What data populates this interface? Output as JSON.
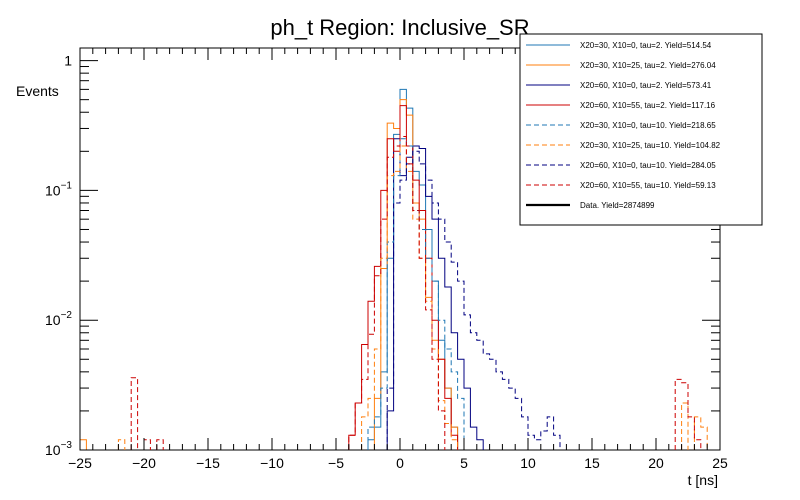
{
  "chart_data": {
    "type": "line",
    "title": "ph_t Region: Inclusive_SR",
    "xlabel": "t [ns]",
    "ylabel": "Events",
    "xlim": [
      -25,
      25
    ],
    "ylim": [
      0.001,
      1.25
    ],
    "yscale": "log",
    "step": true,
    "bin_width": 0.5,
    "legend_position": "top-right",
    "x_ticks": [
      -25,
      -20,
      -15,
      -10,
      -5,
      0,
      5,
      10,
      15,
      20,
      25
    ],
    "x_tick_labels": [
      "−25",
      "−20",
      "−15",
      "−10",
      "−5",
      "0",
      "5",
      "10",
      "15",
      "20",
      "25"
    ],
    "y_ticks": [
      0.001,
      0.01,
      0.1,
      1
    ],
    "y_tick_labels": [
      {
        "base": "10",
        "exp": "−3"
      },
      {
        "base": "10",
        "exp": "−2"
      },
      {
        "base": "10",
        "exp": "−1"
      },
      {
        "base": "1",
        "exp": ""
      }
    ],
    "series": [
      {
        "name": "X20=30, X10=0, tau=2. Yield=514.54",
        "color": "#1f77b4",
        "dash": false,
        "points": [
          [
            -2.5,
            0.0012
          ],
          [
            -2,
            0.0015
          ],
          [
            -1.5,
            0.004
          ],
          [
            -1,
            0.03
          ],
          [
            -0.5,
            0.27
          ],
          [
            0,
            0.6
          ],
          [
            0.5,
            0.43
          ],
          [
            1,
            0.14
          ],
          [
            1.5,
            0.11
          ],
          [
            2,
            0.05
          ],
          [
            2.5,
            0.02
          ],
          [
            3,
            0.007
          ],
          [
            3.5,
            0.003
          ],
          [
            4,
            0.0015
          ]
        ]
      },
      {
        "name": "X20=30, X10=25, tau=2. Yield=276.04",
        "color": "#ff7f0e",
        "dash": false,
        "points": [
          [
            -25,
            0.0012
          ],
          [
            -2,
            0.0025
          ],
          [
            -1.5,
            0.025
          ],
          [
            -1,
            0.33
          ],
          [
            -0.5,
            0.3
          ],
          [
            0,
            0.5
          ],
          [
            0.5,
            0.38
          ],
          [
            1,
            0.08
          ],
          [
            1.5,
            0.06
          ],
          [
            2,
            0.015
          ],
          [
            2.5,
            0.007
          ],
          [
            3,
            0.005
          ],
          [
            3.5,
            0.003
          ],
          [
            4,
            0.0015
          ]
        ]
      },
      {
        "name": "X20=60, X10=0, tau=2. Yield=573.41",
        "color": "#000080",
        "dash": false,
        "points": [
          [
            -1,
            0.002
          ],
          [
            -0.5,
            0.25
          ],
          [
            0,
            0.13
          ],
          [
            0.5,
            0.18
          ],
          [
            1,
            0.22
          ],
          [
            1.5,
            0.21
          ],
          [
            2,
            0.09
          ],
          [
            2.5,
            0.06
          ],
          [
            3,
            0.03
          ],
          [
            3.5,
            0.018
          ],
          [
            4,
            0.008
          ],
          [
            4.5,
            0.005
          ],
          [
            5,
            0.003
          ],
          [
            5.5,
            0.0015
          ],
          [
            6,
            0.0012
          ]
        ]
      },
      {
        "name": "X20=60, X10=55, tau=2. Yield=117.16",
        "color": "#cc0000",
        "dash": false,
        "points": [
          [
            -4,
            0.0013
          ],
          [
            -3.5,
            0.0023
          ],
          [
            -3,
            0.0065
          ],
          [
            -2.5,
            0.014
          ],
          [
            -2,
            0.026
          ],
          [
            -1.5,
            0.1
          ],
          [
            -1,
            0.25
          ],
          [
            -0.5,
            0.2
          ],
          [
            0,
            0.45
          ],
          [
            0.5,
            0.22
          ],
          [
            1,
            0.12
          ],
          [
            1.5,
            0.07
          ],
          [
            2,
            0.03
          ],
          [
            2.5,
            0.01
          ],
          [
            3,
            0.005
          ],
          [
            3.5,
            0.0025
          ],
          [
            4,
            0.0013
          ]
        ]
      },
      {
        "name": "X20=30, X10=0, tau=10. Yield=218.65",
        "color": "#1f77b4",
        "dash": true,
        "points": [
          [
            -2.5,
            0.0015
          ],
          [
            -2,
            0.0018
          ],
          [
            -1.5,
            0.003
          ],
          [
            -1,
            0.04
          ],
          [
            -0.5,
            0.13
          ],
          [
            0,
            0.25
          ],
          [
            0.5,
            0.22
          ],
          [
            1,
            0.07
          ],
          [
            1.5,
            0.05
          ],
          [
            2,
            0.03
          ],
          [
            2.5,
            0.02
          ],
          [
            3,
            0.01
          ],
          [
            3.5,
            0.006
          ],
          [
            4,
            0.004
          ],
          [
            4.5,
            0.0025
          ]
        ]
      },
      {
        "name": "X20=30, X10=25, tau=10. Yield=104.82",
        "color": "#ff7f0e",
        "dash": true,
        "points": [
          [
            -22,
            0.0012
          ],
          [
            -3,
            0.0018
          ],
          [
            -2.5,
            0.0025
          ],
          [
            -2,
            0.006
          ],
          [
            -1.5,
            0.03
          ],
          [
            -1,
            0.13
          ],
          [
            -0.5,
            0.14
          ],
          [
            0,
            0.22
          ],
          [
            0.5,
            0.14
          ],
          [
            1,
            0.06
          ],
          [
            1.5,
            0.03
          ],
          [
            2,
            0.014
          ],
          [
            2.5,
            0.006
          ],
          [
            3,
            0.0024
          ],
          [
            3.5,
            0.0016
          ],
          [
            4,
            0.0012
          ],
          [
            22,
            0.0023
          ],
          [
            23,
            0.0018
          ],
          [
            23.5,
            0.0015
          ]
        ]
      },
      {
        "name": "X20=60, X10=0, tau=10. Yield=284.05",
        "color": "#000080",
        "dash": true,
        "points": [
          [
            -1,
            0.003
          ],
          [
            -0.5,
            0.08
          ],
          [
            0,
            0.12
          ],
          [
            0.5,
            0.16
          ],
          [
            1,
            0.2
          ],
          [
            1.5,
            0.16
          ],
          [
            2,
            0.12
          ],
          [
            2.5,
            0.08
          ],
          [
            3,
            0.06
          ],
          [
            3.5,
            0.04
          ],
          [
            4,
            0.028
          ],
          [
            4.5,
            0.02
          ],
          [
            5,
            0.011
          ],
          [
            5.5,
            0.008
          ],
          [
            6,
            0.007
          ],
          [
            6.5,
            0.0055
          ],
          [
            7,
            0.005
          ],
          [
            7.5,
            0.004
          ],
          [
            8,
            0.0035
          ],
          [
            8.5,
            0.003
          ],
          [
            9,
            0.0025
          ],
          [
            9.5,
            0.0018
          ],
          [
            10,
            0.0013
          ],
          [
            10.5,
            0.0012
          ],
          [
            11,
            0.0014
          ],
          [
            11.5,
            0.0018
          ],
          [
            12,
            0.0013
          ]
        ]
      },
      {
        "name": "X20=60, X10=55, tau=10. Yield=59.13",
        "color": "#cc0000",
        "dash": true,
        "points": [
          [
            -21,
            0.0036
          ],
          [
            -20,
            0.0012
          ],
          [
            -19,
            0.0012
          ],
          [
            -4,
            0.0013
          ],
          [
            -3.5,
            0.0023
          ],
          [
            -3,
            0.0035
          ],
          [
            -2.5,
            0.0078
          ],
          [
            -2,
            0.022
          ],
          [
            -1.5,
            0.06
          ],
          [
            -1,
            0.18
          ],
          [
            -0.5,
            0.22
          ],
          [
            0,
            0.26
          ],
          [
            0.5,
            0.16
          ],
          [
            1,
            0.07
          ],
          [
            1.5,
            0.03
          ],
          [
            2,
            0.012
          ],
          [
            2.5,
            0.005
          ],
          [
            3,
            0.002
          ],
          [
            21.5,
            0.0035
          ],
          [
            22,
            0.0033
          ],
          [
            22.5,
            0.0018
          ],
          [
            23,
            0.0012
          ]
        ]
      },
      {
        "name": "Data. Yield=2874899",
        "color": "#000000",
        "dash": false,
        "points": []
      }
    ]
  }
}
